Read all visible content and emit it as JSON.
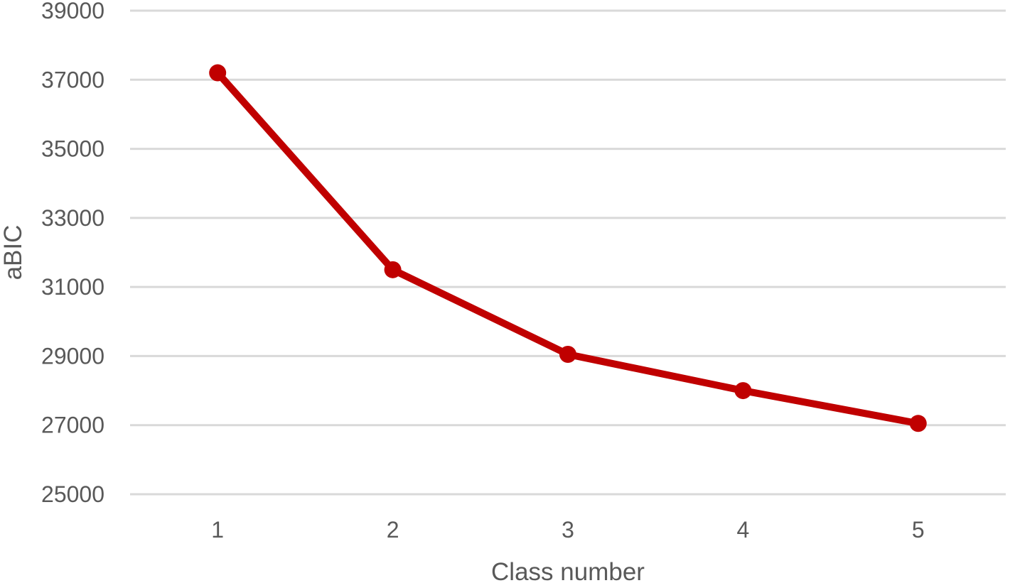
{
  "chart_data": {
    "type": "line",
    "title": "",
    "xlabel": "Class number",
    "ylabel": "aBIC",
    "categories": [
      "1",
      "2",
      "3",
      "4",
      "5"
    ],
    "series": [
      {
        "values": [
          37200,
          31500,
          29050,
          28000,
          27050
        ],
        "color": "#c00000"
      }
    ],
    "ylim": [
      25000,
      39000
    ],
    "yticks": [
      25000,
      27000,
      29000,
      31000,
      33000,
      35000,
      37000,
      39000
    ],
    "grid": "horizontal",
    "legend": "none",
    "marker": "circle"
  }
}
